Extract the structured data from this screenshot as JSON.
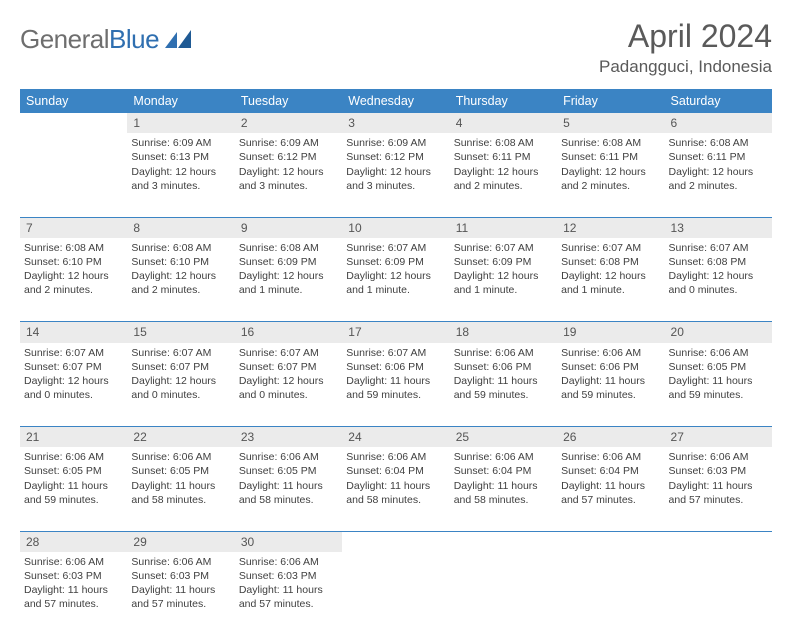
{
  "brand": {
    "part1": "General",
    "part2": "Blue"
  },
  "header": {
    "month_title": "April 2024",
    "location": "Padangguci, Indonesia"
  },
  "colors": {
    "header_bg": "#3b84c4",
    "daynum_bg": "#ebebeb",
    "rule": "#3b84c4",
    "text": "#404040"
  },
  "weekdays": [
    "Sunday",
    "Monday",
    "Tuesday",
    "Wednesday",
    "Thursday",
    "Friday",
    "Saturday"
  ],
  "layout": {
    "first_weekday_index": 1,
    "days_in_month": 30,
    "rows": 5,
    "cols": 7
  },
  "days": {
    "1": {
      "sunrise": "6:09 AM",
      "sunset": "6:13 PM",
      "daylight": "12 hours and 3 minutes."
    },
    "2": {
      "sunrise": "6:09 AM",
      "sunset": "6:12 PM",
      "daylight": "12 hours and 3 minutes."
    },
    "3": {
      "sunrise": "6:09 AM",
      "sunset": "6:12 PM",
      "daylight": "12 hours and 3 minutes."
    },
    "4": {
      "sunrise": "6:08 AM",
      "sunset": "6:11 PM",
      "daylight": "12 hours and 2 minutes."
    },
    "5": {
      "sunrise": "6:08 AM",
      "sunset": "6:11 PM",
      "daylight": "12 hours and 2 minutes."
    },
    "6": {
      "sunrise": "6:08 AM",
      "sunset": "6:11 PM",
      "daylight": "12 hours and 2 minutes."
    },
    "7": {
      "sunrise": "6:08 AM",
      "sunset": "6:10 PM",
      "daylight": "12 hours and 2 minutes."
    },
    "8": {
      "sunrise": "6:08 AM",
      "sunset": "6:10 PM",
      "daylight": "12 hours and 2 minutes."
    },
    "9": {
      "sunrise": "6:08 AM",
      "sunset": "6:09 PM",
      "daylight": "12 hours and 1 minute."
    },
    "10": {
      "sunrise": "6:07 AM",
      "sunset": "6:09 PM",
      "daylight": "12 hours and 1 minute."
    },
    "11": {
      "sunrise": "6:07 AM",
      "sunset": "6:09 PM",
      "daylight": "12 hours and 1 minute."
    },
    "12": {
      "sunrise": "6:07 AM",
      "sunset": "6:08 PM",
      "daylight": "12 hours and 1 minute."
    },
    "13": {
      "sunrise": "6:07 AM",
      "sunset": "6:08 PM",
      "daylight": "12 hours and 0 minutes."
    },
    "14": {
      "sunrise": "6:07 AM",
      "sunset": "6:07 PM",
      "daylight": "12 hours and 0 minutes."
    },
    "15": {
      "sunrise": "6:07 AM",
      "sunset": "6:07 PM",
      "daylight": "12 hours and 0 minutes."
    },
    "16": {
      "sunrise": "6:07 AM",
      "sunset": "6:07 PM",
      "daylight": "12 hours and 0 minutes."
    },
    "17": {
      "sunrise": "6:07 AM",
      "sunset": "6:06 PM",
      "daylight": "11 hours and 59 minutes."
    },
    "18": {
      "sunrise": "6:06 AM",
      "sunset": "6:06 PM",
      "daylight": "11 hours and 59 minutes."
    },
    "19": {
      "sunrise": "6:06 AM",
      "sunset": "6:06 PM",
      "daylight": "11 hours and 59 minutes."
    },
    "20": {
      "sunrise": "6:06 AM",
      "sunset": "6:05 PM",
      "daylight": "11 hours and 59 minutes."
    },
    "21": {
      "sunrise": "6:06 AM",
      "sunset": "6:05 PM",
      "daylight": "11 hours and 59 minutes."
    },
    "22": {
      "sunrise": "6:06 AM",
      "sunset": "6:05 PM",
      "daylight": "11 hours and 58 minutes."
    },
    "23": {
      "sunrise": "6:06 AM",
      "sunset": "6:05 PM",
      "daylight": "11 hours and 58 minutes."
    },
    "24": {
      "sunrise": "6:06 AM",
      "sunset": "6:04 PM",
      "daylight": "11 hours and 58 minutes."
    },
    "25": {
      "sunrise": "6:06 AM",
      "sunset": "6:04 PM",
      "daylight": "11 hours and 58 minutes."
    },
    "26": {
      "sunrise": "6:06 AM",
      "sunset": "6:04 PM",
      "daylight": "11 hours and 57 minutes."
    },
    "27": {
      "sunrise": "6:06 AM",
      "sunset": "6:03 PM",
      "daylight": "11 hours and 57 minutes."
    },
    "28": {
      "sunrise": "6:06 AM",
      "sunset": "6:03 PM",
      "daylight": "11 hours and 57 minutes."
    },
    "29": {
      "sunrise": "6:06 AM",
      "sunset": "6:03 PM",
      "daylight": "11 hours and 57 minutes."
    },
    "30": {
      "sunrise": "6:06 AM",
      "sunset": "6:03 PM",
      "daylight": "11 hours and 57 minutes."
    }
  },
  "labels": {
    "sunrise": "Sunrise:",
    "sunset": "Sunset:",
    "daylight": "Daylight:"
  }
}
